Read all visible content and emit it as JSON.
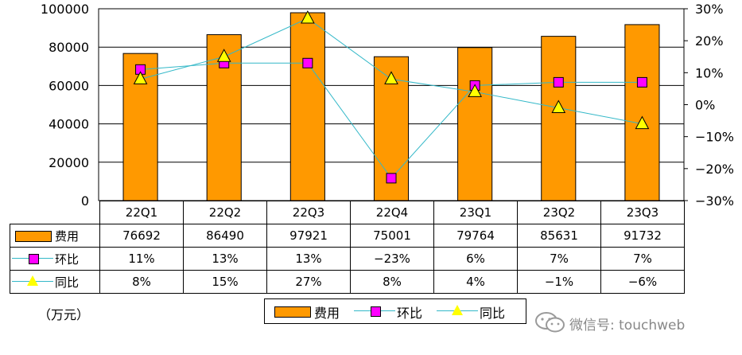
{
  "chart_data": {
    "type": "bar",
    "categories": [
      "22Q1",
      "22Q2",
      "22Q3",
      "22Q4",
      "23Q1",
      "23Q2",
      "23Q3"
    ],
    "series": [
      {
        "name": "费用",
        "type": "bar",
        "axis": "left",
        "color": "#ff9900",
        "values": [
          76692,
          86490,
          97921,
          75001,
          79764,
          85631,
          91732
        ],
        "labels": [
          "76692",
          "86490",
          "97921",
          "75001",
          "79764",
          "85631",
          "91732"
        ]
      },
      {
        "name": "环比",
        "type": "line",
        "axis": "right",
        "marker": "square",
        "color": "#ff00ff",
        "values": [
          11,
          13,
          13,
          -23,
          6,
          7,
          7
        ],
        "labels": [
          "11%",
          "13%",
          "13%",
          "−23%",
          "6%",
          "7%",
          "7%"
        ]
      },
      {
        "name": "同比",
        "type": "line",
        "axis": "right",
        "marker": "triangle",
        "color": "#ffff00",
        "values": [
          8,
          15,
          27,
          8,
          4,
          -1,
          -6
        ],
        "labels": [
          "8%",
          "15%",
          "27%",
          "8%",
          "4%",
          "−1%",
          "−6%"
        ]
      }
    ],
    "ylim_left": [
      0,
      100000
    ],
    "yticks_left": [
      "0",
      "20000",
      "40000",
      "60000",
      "80000",
      "100000"
    ],
    "ylim_right": [
      -30,
      30
    ],
    "yticks_right": [
      "−30%",
      "−20%",
      "−10%",
      "0%",
      "10%",
      "20%",
      "30%"
    ],
    "grid": true,
    "legend_position": "bottom",
    "line_color": "#33b8c8"
  },
  "unit_label": "（万元）",
  "watermark": "微信号: touchweb"
}
